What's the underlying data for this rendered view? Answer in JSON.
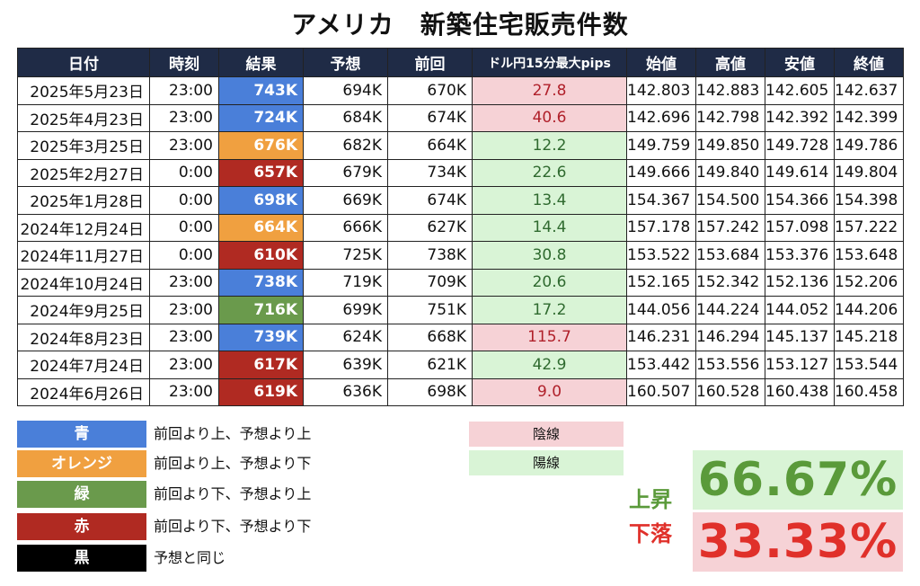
{
  "title": "アメリカ　新築住宅販売件数",
  "headers": [
    "日付",
    "時刻",
    "結果",
    "予想",
    "前回",
    "ドル円15分最大pips",
    "始値",
    "高値",
    "安値",
    "終値"
  ],
  "colors": {
    "header_bg": "#1f2b46",
    "blue": "#4a7fd9",
    "orange": "#f0a040",
    "green": "#6a9a4c",
    "red": "#b02a22",
    "black": "#000000",
    "candle_down": "#f6d2d6",
    "candle_up": "#d9f4d6",
    "up_text": "#5a9a3a",
    "down_text": "#e0302a"
  },
  "rows": [
    {
      "date": "2025年5月23日",
      "time": "23:00",
      "result": "743K",
      "result_color": "blue",
      "forecast": "694K",
      "previous": "670K",
      "pips": "27.8",
      "candle": "down",
      "open": "142.803",
      "high": "142.883",
      "low": "142.605",
      "close": "142.637"
    },
    {
      "date": "2025年4月23日",
      "time": "23:00",
      "result": "724K",
      "result_color": "blue",
      "forecast": "684K",
      "previous": "674K",
      "pips": "40.6",
      "candle": "down",
      "open": "142.696",
      "high": "142.798",
      "low": "142.392",
      "close": "142.399"
    },
    {
      "date": "2025年3月25日",
      "time": "23:00",
      "result": "676K",
      "result_color": "orange",
      "forecast": "682K",
      "previous": "664K",
      "pips": "12.2",
      "candle": "up",
      "open": "149.759",
      "high": "149.850",
      "low": "149.728",
      "close": "149.786"
    },
    {
      "date": "2025年2月27日",
      "time": "0:00",
      "result": "657K",
      "result_color": "red",
      "forecast": "679K",
      "previous": "734K",
      "pips": "22.6",
      "candle": "up",
      "open": "149.666",
      "high": "149.840",
      "low": "149.614",
      "close": "149.804"
    },
    {
      "date": "2025年1月28日",
      "time": "0:00",
      "result": "698K",
      "result_color": "blue",
      "forecast": "669K",
      "previous": "674K",
      "pips": "13.4",
      "candle": "up",
      "open": "154.367",
      "high": "154.500",
      "low": "154.366",
      "close": "154.398"
    },
    {
      "date": "2024年12月24日",
      "time": "0:00",
      "result": "664K",
      "result_color": "orange",
      "forecast": "666K",
      "previous": "627K",
      "pips": "14.4",
      "candle": "up",
      "open": "157.178",
      "high": "157.242",
      "low": "157.098",
      "close": "157.222"
    },
    {
      "date": "2024年11月27日",
      "time": "0:00",
      "result": "610K",
      "result_color": "red",
      "forecast": "725K",
      "previous": "738K",
      "pips": "30.8",
      "candle": "up",
      "open": "153.522",
      "high": "153.684",
      "low": "153.376",
      "close": "153.648"
    },
    {
      "date": "2024年10月24日",
      "time": "23:00",
      "result": "738K",
      "result_color": "blue",
      "forecast": "719K",
      "previous": "709K",
      "pips": "20.6",
      "candle": "up",
      "open": "152.165",
      "high": "152.342",
      "low": "152.136",
      "close": "152.206"
    },
    {
      "date": "2024年9月25日",
      "time": "23:00",
      "result": "716K",
      "result_color": "green",
      "forecast": "699K",
      "previous": "751K",
      "pips": "17.2",
      "candle": "up",
      "open": "144.056",
      "high": "144.224",
      "low": "144.052",
      "close": "144.206"
    },
    {
      "date": "2024年8月23日",
      "time": "23:00",
      "result": "739K",
      "result_color": "blue",
      "forecast": "624K",
      "previous": "668K",
      "pips": "115.7",
      "candle": "down",
      "open": "146.231",
      "high": "146.294",
      "low": "145.137",
      "close": "145.218"
    },
    {
      "date": "2024年7月24日",
      "time": "23:00",
      "result": "617K",
      "result_color": "red",
      "forecast": "639K",
      "previous": "621K",
      "pips": "42.9",
      "candle": "up",
      "open": "153.442",
      "high": "153.556",
      "low": "153.127",
      "close": "153.544"
    },
    {
      "date": "2024年6月26日",
      "time": "23:00",
      "result": "619K",
      "result_color": "red",
      "forecast": "636K",
      "previous": "698K",
      "pips": "9.0",
      "candle": "down",
      "open": "160.507",
      "high": "160.528",
      "low": "160.438",
      "close": "160.458"
    }
  ],
  "legend": [
    {
      "label": "青",
      "color": "blue",
      "desc": "前回より上、予想より上"
    },
    {
      "label": "オレンジ",
      "color": "orange",
      "desc": "前回より上、予想より下"
    },
    {
      "label": "緑",
      "color": "green",
      "desc": "前回より下、予想より上"
    },
    {
      "label": "赤",
      "color": "red",
      "desc": "前回より下、予想より下"
    },
    {
      "label": "黒",
      "color": "black",
      "desc": "予想と同じ"
    }
  ],
  "candle_legend": {
    "down": "陰線",
    "up": "陽線"
  },
  "stats": {
    "up_label": "上昇",
    "up_value": "66.67%",
    "down_label": "下落",
    "down_value": "33.33%"
  }
}
